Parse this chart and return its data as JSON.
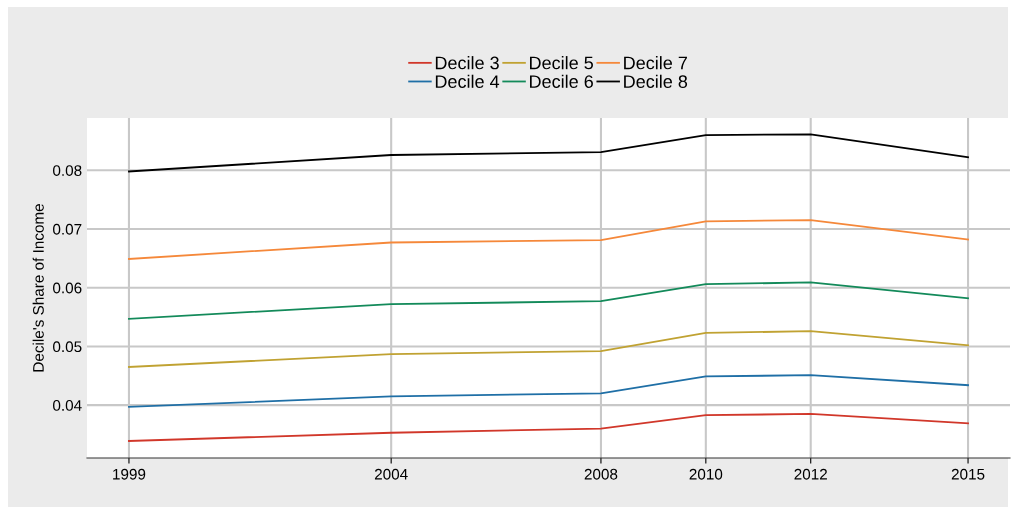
{
  "chart_data": {
    "type": "line",
    "ylabel": "Decile's Share of Income",
    "x": [
      1999,
      2004,
      2008,
      2010,
      2012,
      2015
    ],
    "series": [
      {
        "name": "Decile 3",
        "color": "#d1372a",
        "values": [
          0.0339,
          0.0353,
          0.036,
          0.0383,
          0.0385,
          0.0369
        ]
      },
      {
        "name": "Decile 4",
        "color": "#1f6fa6",
        "values": [
          0.0397,
          0.0415,
          0.042,
          0.0449,
          0.0451,
          0.0434
        ]
      },
      {
        "name": "Decile 5",
        "color": "#c0a232",
        "values": [
          0.0465,
          0.0487,
          0.0492,
          0.0523,
          0.0526,
          0.0502
        ]
      },
      {
        "name": "Decile 6",
        "color": "#138a5a",
        "values": [
          0.0547,
          0.0572,
          0.0577,
          0.0606,
          0.0609,
          0.0582
        ]
      },
      {
        "name": "Decile 7",
        "color": "#f5883a",
        "values": [
          0.0649,
          0.0677,
          0.0681,
          0.0713,
          0.0715,
          0.0682
        ]
      },
      {
        "name": "Decile 8",
        "color": "#000000",
        "values": [
          0.0798,
          0.0826,
          0.0831,
          0.086,
          0.0861,
          0.0822
        ]
      }
    ],
    "xlim": [
      1998.2,
      2015.8
    ],
    "xticks": [
      1999,
      2004,
      2008,
      2010,
      2012,
      2015
    ],
    "ylim": [
      0.031,
      0.0889
    ],
    "yticks": [
      0.04,
      0.05,
      0.06,
      0.07,
      0.08
    ],
    "grid": true,
    "legend": "top",
    "marker": "none",
    "line_style": "solid"
  }
}
